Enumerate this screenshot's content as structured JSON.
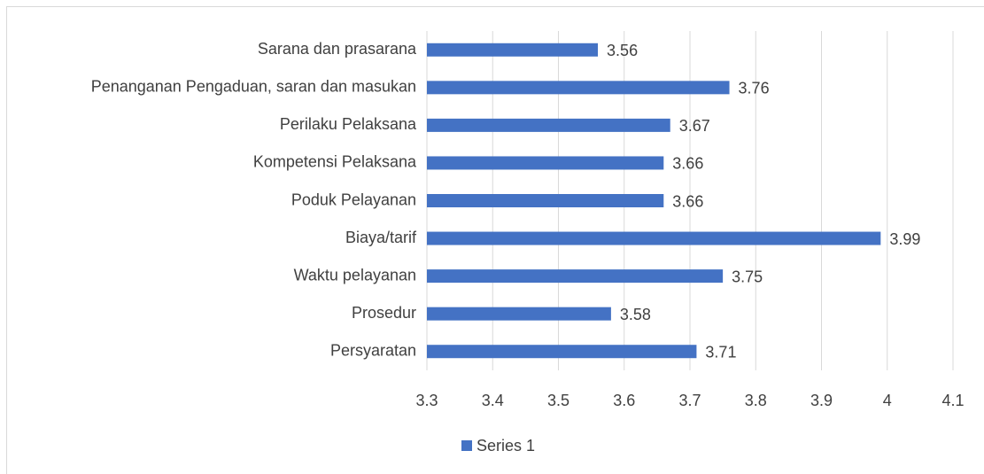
{
  "chart_data": {
    "type": "bar",
    "orientation": "horizontal",
    "categories": [
      "Sarana dan prasarana",
      "Penanganan Pengaduan, saran dan masukan",
      "Perilaku Pelaksana",
      "Kompetensi Pelaksana",
      "Poduk Pelayanan",
      "Biaya/tarif",
      "Waktu pelayanan",
      "Prosedur",
      "Persyaratan"
    ],
    "series": [
      {
        "name": "Series 1",
        "color": "#4472c4",
        "values": [
          3.56,
          3.76,
          3.67,
          3.66,
          3.66,
          3.99,
          3.75,
          3.58,
          3.71
        ]
      }
    ],
    "xlim": [
      3.3,
      4.1
    ],
    "xticks": [
      3.3,
      3.4,
      3.5,
      3.6,
      3.7,
      3.8,
      3.9,
      4,
      4.1
    ],
    "grid": true,
    "legend": "bottom"
  }
}
